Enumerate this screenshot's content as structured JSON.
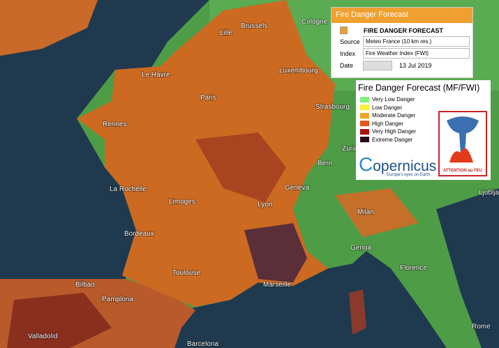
{
  "panel": {
    "header": "Fire Danger Forecast",
    "title": "FIRE DANGER FORECAST",
    "source_label": "Source",
    "source_value": "Meteo France (10 km res.)",
    "index_label": "Index",
    "index_value": "Fire Weather Index (FWI)",
    "date_label": "Date",
    "date_value": "13 Jul 2019"
  },
  "legend": {
    "title": "Fire Danger Forecast (MF/FWI)",
    "entries": [
      {
        "label": "Very Low Danger",
        "color": "#7ef07a"
      },
      {
        "label": "Low Danger",
        "color": "#f5f23a"
      },
      {
        "label": "Moderate Danger",
        "color": "#f0a52a"
      },
      {
        "label": "High Danger",
        "color": "#e5561b"
      },
      {
        "label": "Very High Danger",
        "color": "#a8120f"
      },
      {
        "label": "Extreme Danger",
        "color": "#2a0b1e"
      }
    ],
    "logo_text": "opernicus",
    "logo_tagline": "Europe's eyes on Earth",
    "badge_text": "ATTENTION au FEU"
  },
  "map": {
    "cities": [
      "Brussels",
      "Lille",
      "Cologne",
      "Le Havre",
      "Luxembourg",
      "Paris",
      "Strasbourg",
      "Rennes",
      "Zurich",
      "Bern",
      "La Rochelle",
      "Limoges",
      "Geneva",
      "Lyon",
      "Milan",
      "Bordeaux",
      "Genoa",
      "Toulouse",
      "Florence",
      "Bilbao",
      "Marseille",
      "Pamplona",
      "Valladolid",
      "Barcelona",
      "Rome",
      "Ljubljana"
    ]
  }
}
